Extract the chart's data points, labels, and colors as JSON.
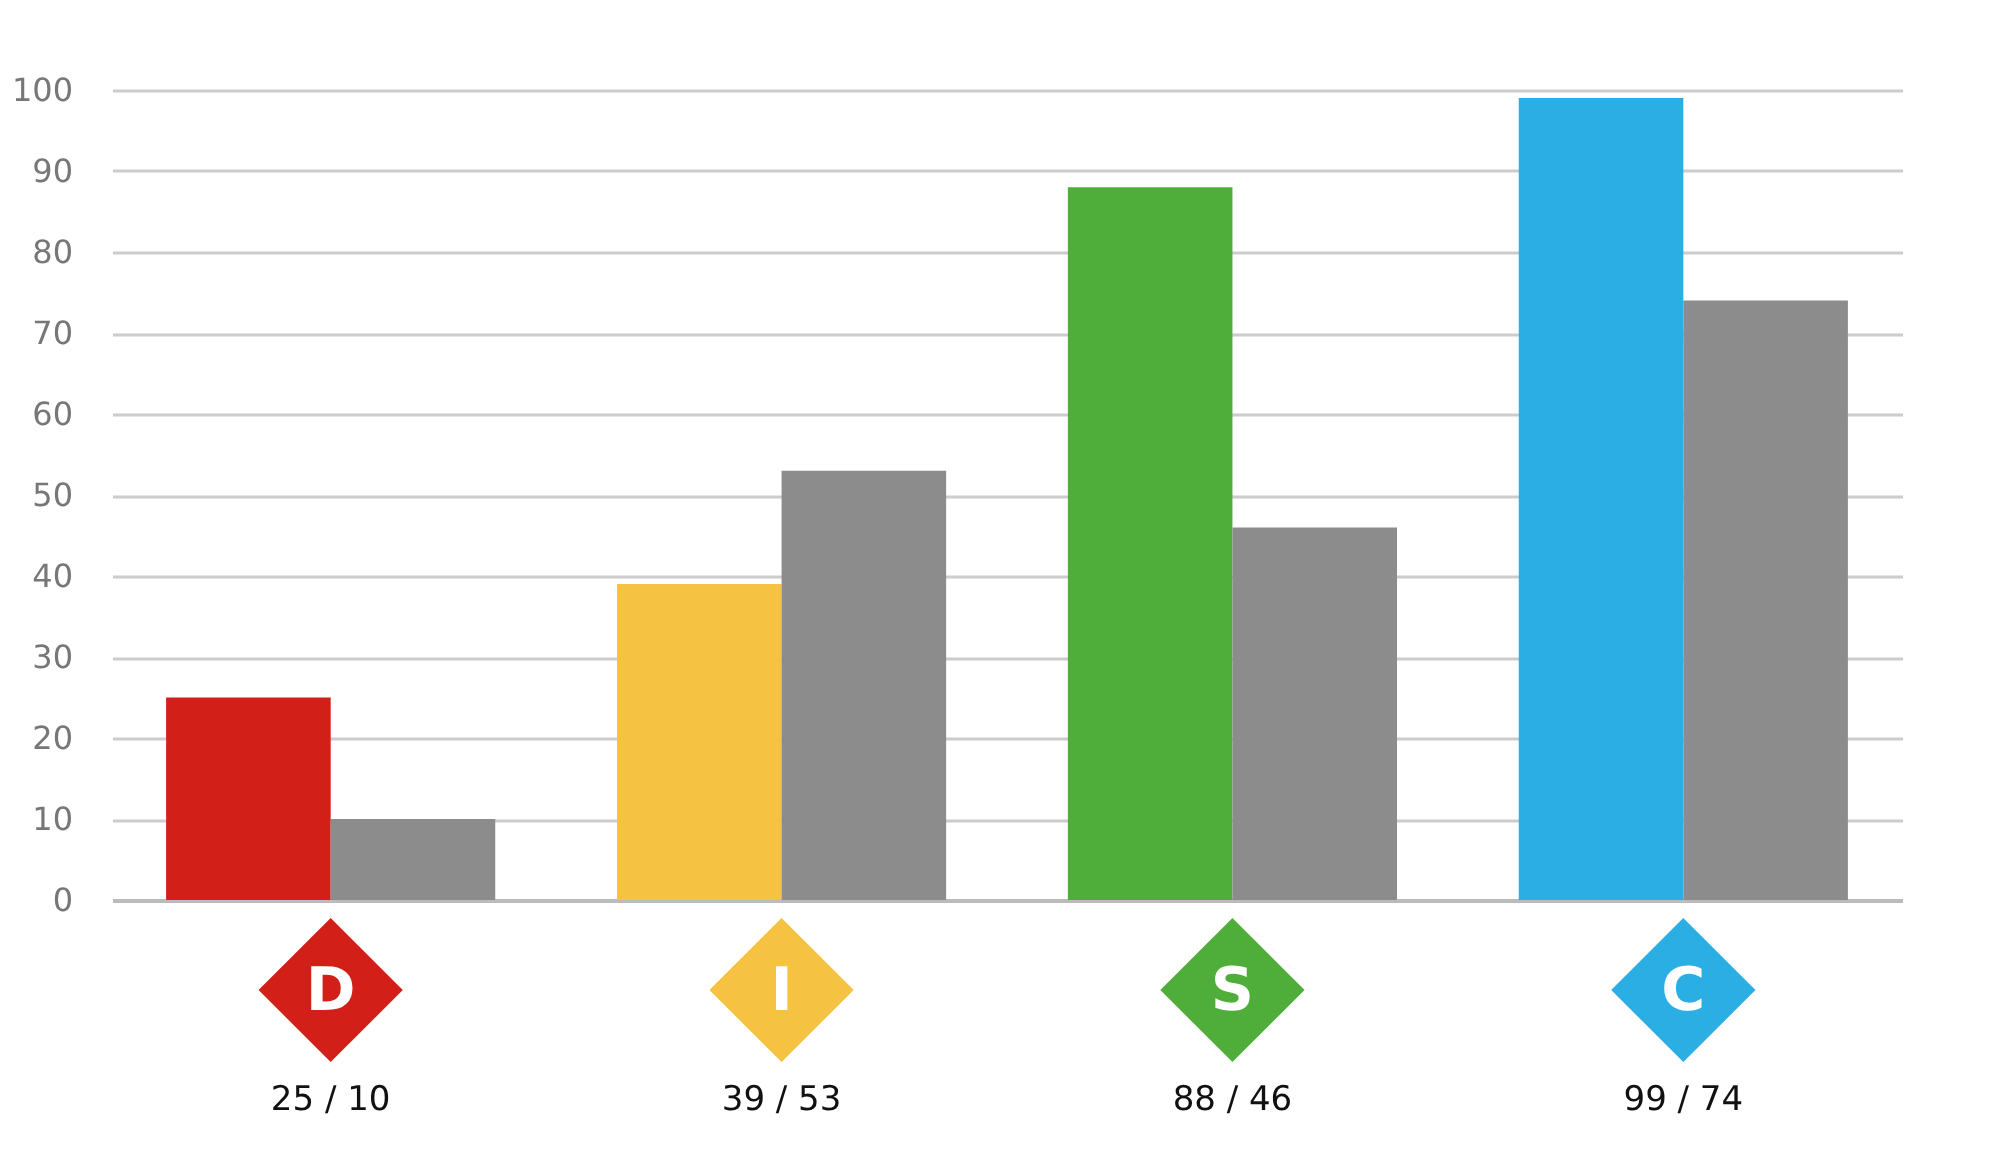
{
  "chart_data": {
    "type": "bar",
    "categories": [
      "D",
      "I",
      "S",
      "C"
    ],
    "series": [
      {
        "colors": [
          "#d21f17",
          "#f5c242",
          "#4fae3a",
          "#2aaee3"
        ],
        "values": [
          25,
          39,
          88,
          99
        ]
      },
      {
        "color": "#8c8c8c",
        "values": [
          10,
          53,
          46,
          74
        ]
      }
    ],
    "ylim": [
      0,
      100
    ],
    "yticks": [
      0,
      10,
      20,
      30,
      40,
      50,
      60,
      70,
      80,
      90,
      100
    ],
    "grid": "y",
    "annotations": [
      "25 / 10",
      "39 / 53",
      "88 / 46",
      "99 / 74"
    ]
  }
}
